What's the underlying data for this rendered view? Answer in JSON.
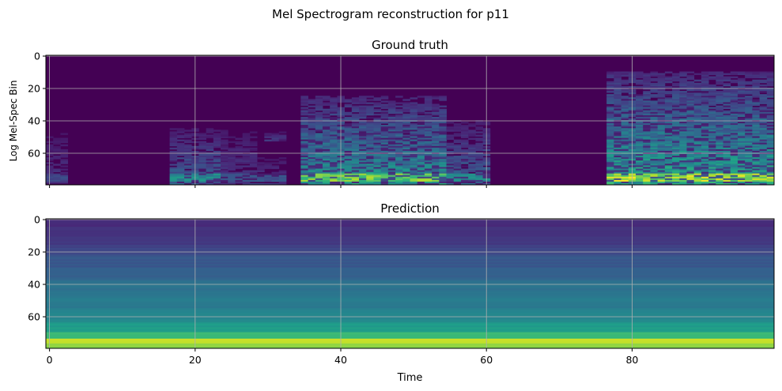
{
  "figure": {
    "suptitle": "Mel Spectrogram reconstruction for p11"
  },
  "chart_data": [
    {
      "type": "heatmap",
      "title": "Ground truth",
      "xlabel": "",
      "ylabel": "Log Mel-Spec Bin",
      "xlim": [
        -0.5,
        99.5
      ],
      "ylim": [
        79.5,
        -0.5
      ],
      "x_ticks": [
        0,
        20,
        40,
        60,
        80
      ],
      "x_tick_labels_visible": false,
      "y_ticks": [
        0,
        20,
        40,
        60
      ],
      "grid": true,
      "colormap": "viridis",
      "value_range": [
        0,
        1
      ],
      "n_time_frames": 100,
      "n_mel_bins": 80,
      "description_of_values": {
        "silence_value": 0.0,
        "activity_segments": [
          {
            "t_start": 0,
            "t_end": 1.5,
            "bin_low": 40,
            "bin_high": 78,
            "peak": 0.25
          },
          {
            "t_start": 17.5,
            "t_end": 23.5,
            "bin_low": 45,
            "bin_high": 79,
            "peak": 0.55
          },
          {
            "t_start": 24,
            "t_end": 28,
            "bin_low": 42,
            "bin_high": 79,
            "peak": 0.3
          },
          {
            "t_start": 29,
            "t_end": 32,
            "bin_low": 60,
            "bin_high": 79,
            "peak": 0.3
          },
          {
            "t_start": 30,
            "t_end": 31.5,
            "bin_low": 46,
            "bin_high": 52,
            "peak": 0.3
          },
          {
            "t_start": 35.5,
            "t_end": 54,
            "bin_low": 25,
            "bin_high": 79,
            "peak": 0.9
          },
          {
            "t_start": 55,
            "t_end": 60,
            "bin_low": 40,
            "bin_high": 79,
            "peak": 0.55
          },
          {
            "t_start": 77,
            "t_end": 99.5,
            "bin_low": 10,
            "bin_high": 79,
            "peak": 1.0
          }
        ]
      }
    },
    {
      "type": "heatmap",
      "title": "Prediction",
      "xlabel": "Time",
      "ylabel": "",
      "xlim": [
        -0.5,
        99.5
      ],
      "ylim": [
        79.5,
        -0.5
      ],
      "x_ticks": [
        0,
        20,
        40,
        60,
        80
      ],
      "y_ticks": [
        0,
        20,
        40,
        60
      ],
      "grid": true,
      "colormap": "viridis",
      "value_range": [
        0,
        1
      ],
      "n_time_frames": 100,
      "n_mel_bins": 80,
      "row_profile": [
        {
          "bin_start": 0,
          "bin_end": 5,
          "value": 0.12
        },
        {
          "bin_start": 5,
          "bin_end": 10,
          "value": 0.14
        },
        {
          "bin_start": 10,
          "bin_end": 16,
          "value": 0.16
        },
        {
          "bin_start": 16,
          "bin_end": 22,
          "value": 0.2
        },
        {
          "bin_start": 22,
          "bin_end": 30,
          "value": 0.27
        },
        {
          "bin_start": 30,
          "bin_end": 38,
          "value": 0.31
        },
        {
          "bin_start": 38,
          "bin_end": 47,
          "value": 0.38
        },
        {
          "bin_start": 47,
          "bin_end": 56,
          "value": 0.41
        },
        {
          "bin_start": 56,
          "bin_end": 64,
          "value": 0.46
        },
        {
          "bin_start": 64,
          "bin_end": 70,
          "value": 0.55
        },
        {
          "bin_start": 70,
          "bin_end": 74,
          "value": 0.68
        },
        {
          "bin_start": 74,
          "bin_end": 77,
          "value": 0.92
        },
        {
          "bin_start": 77,
          "bin_end": 80,
          "value": 0.82
        }
      ]
    }
  ]
}
